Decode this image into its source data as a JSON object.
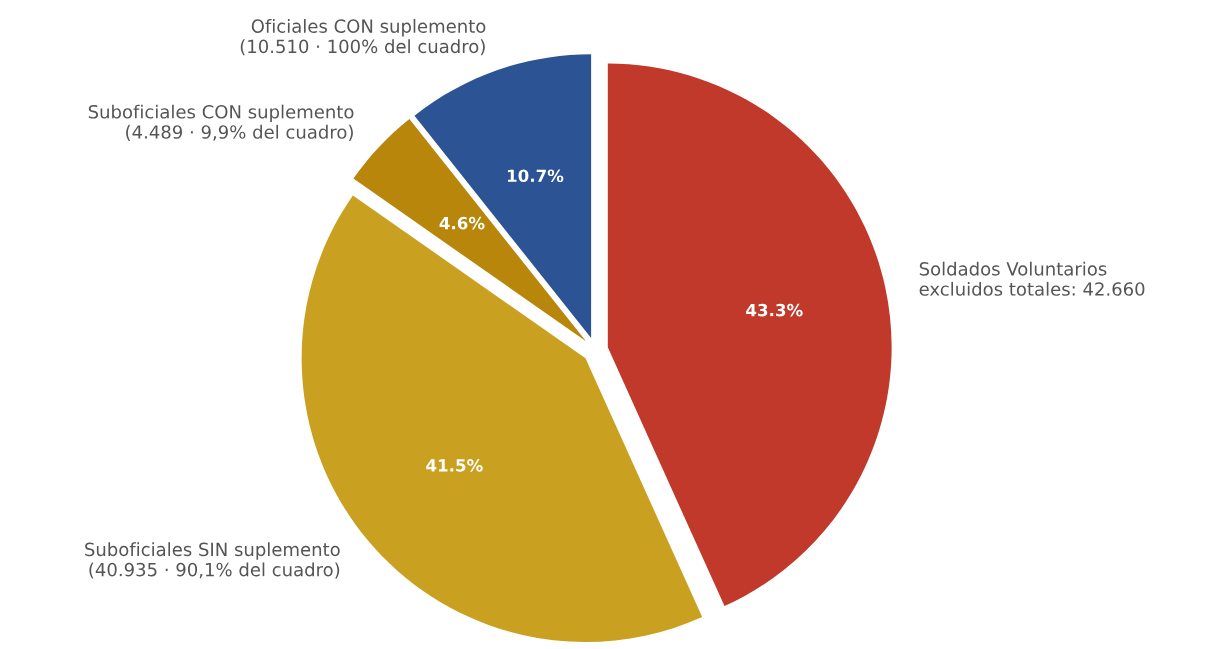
{
  "chart_data": {
    "type": "pie",
    "categories": [
      "Soldados Voluntarios\nexcluidos totales: 42.660",
      "Suboficiales SIN suplemento\n(40.935 · 90,1% del cuadro)",
      "Suboficiales CON suplemento\n(4.489 · 9,9% del cuadro)",
      "Oficiales CON suplemento\n(10.510 · 100% del cuadro)"
    ],
    "values": [
      43.3,
      41.5,
      4.6,
      10.7
    ],
    "value_labels": [
      "43.3%",
      "41.5%",
      "4.6%",
      "10.7%"
    ],
    "colors": [
      "#c0392b",
      "#c9a020",
      "#b8860b",
      "#2c5494"
    ]
  }
}
